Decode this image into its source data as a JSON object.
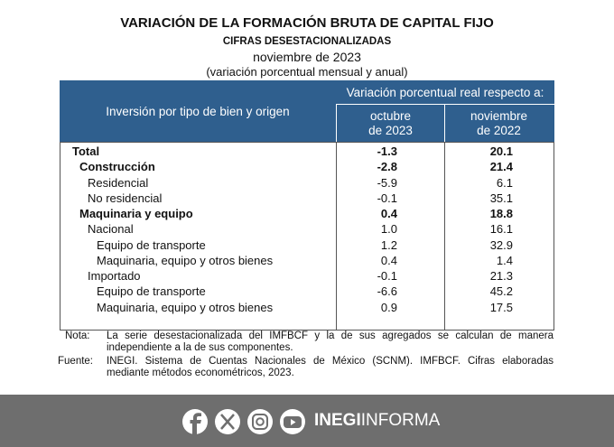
{
  "header": {
    "title": "VARIACIÓN DE LA FORMACIÓN BRUTA DE CAPITAL FIJO",
    "subtitle": "CIFRAS DESESTACIONALIZADAS",
    "period": "noviembre de 2023",
    "note": "(variación porcentual mensual y anual)"
  },
  "table": {
    "row_header": "Inversión por tipo de bien y origen",
    "group_header": "Variación porcentual real respecto a:",
    "columns": [
      [
        "octubre",
        "de 2023"
      ],
      [
        "noviembre",
        "de 2022"
      ]
    ],
    "rows": [
      {
        "label": "Total",
        "level": 0,
        "bold": true,
        "values": [
          "-1.3",
          "20.1"
        ]
      },
      {
        "label": "Construcción",
        "level": 1,
        "bold": true,
        "values": [
          "-2.8",
          "21.4"
        ]
      },
      {
        "label": "Residencial",
        "level": 2,
        "bold": false,
        "values": [
          "-5.9",
          "6.1"
        ]
      },
      {
        "label": "No residencial",
        "level": 2,
        "bold": false,
        "values": [
          "-0.1",
          "35.1"
        ]
      },
      {
        "label": "Maquinaria y equipo",
        "level": 1,
        "bold": true,
        "values": [
          "0.4",
          "18.8"
        ]
      },
      {
        "label": "Nacional",
        "level": 2,
        "bold": false,
        "values": [
          "1.0",
          "16.1"
        ]
      },
      {
        "label": "Equipo de transporte",
        "level": 3,
        "bold": false,
        "values": [
          "1.2",
          "32.9"
        ]
      },
      {
        "label": "Maquinaria, equipo y otros bienes",
        "level": 3,
        "bold": false,
        "values": [
          "0.4",
          "1.4"
        ]
      },
      {
        "label": "Importado",
        "level": 2,
        "bold": false,
        "values": [
          "-0.1",
          "21.3"
        ]
      },
      {
        "label": "Equipo de transporte",
        "level": 3,
        "bold": false,
        "values": [
          "-6.6",
          "45.2"
        ]
      },
      {
        "label": "Maquinaria, equipo y otros bienes",
        "level": 3,
        "bold": false,
        "values": [
          "0.9",
          "17.5"
        ]
      }
    ]
  },
  "notes": [
    {
      "label": "Nota:",
      "text": "La serie desestacionalizada del IMFBCF y la de sus agregados se calculan de manera independiente a la de sus componentes."
    },
    {
      "label": "Fuente:",
      "text": "INEGI. Sistema de Cuentas Nacionales de México (SCNM). IMFBCF. Cifras elaboradas mediante métodos econométricos, 2023."
    }
  ],
  "footer": {
    "brand_bold": "INEGI",
    "brand": "INFORMA"
  }
}
